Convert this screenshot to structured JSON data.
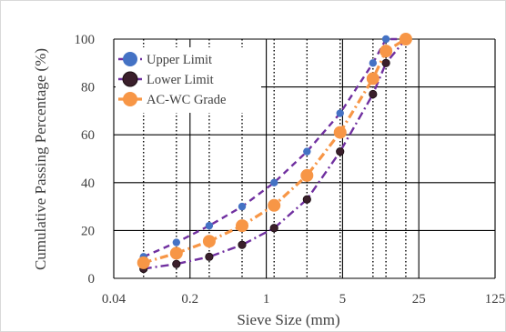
{
  "chart_data": {
    "type": "line",
    "xlabel": "Sieve Size (mm)",
    "ylabel": "Cumulative Passing Percentage (%)",
    "x_scale": "log",
    "xlim": [
      0.04,
      125
    ],
    "ylim": [
      0,
      100
    ],
    "x_ticks": [
      0.04,
      0.2,
      1,
      5,
      25,
      125
    ],
    "x_tick_labels": [
      "0.04",
      "0.2",
      "1",
      "5",
      "25",
      "125"
    ],
    "y_ticks": [
      0,
      20,
      40,
      60,
      80,
      100
    ],
    "y_tick_labels": [
      "0",
      "20",
      "40",
      "60",
      "80",
      "100"
    ],
    "sieve_sizes": [
      0.075,
      0.15,
      0.3,
      0.6,
      1.18,
      2.36,
      4.75,
      9.5,
      12.5,
      19
    ],
    "legend_position": "top-left",
    "grid": "dotted vertical lines at sieve sizes, solid lines at major ticks",
    "series": [
      {
        "name": "Upper Limit",
        "color": "#7030a0",
        "marker_color": "#4472c4",
        "line_style": "dashed",
        "x": [
          0.075,
          0.15,
          0.3,
          0.6,
          1.18,
          2.36,
          4.75,
          9.5,
          12.5,
          19
        ],
        "values": [
          9,
          15,
          22,
          30,
          40,
          53,
          69,
          90,
          100,
          100
        ]
      },
      {
        "name": "Lower Limit",
        "color": "#7030a0",
        "marker_color": "#3a1f2b",
        "line_style": "dash-dot",
        "x": [
          0.075,
          0.15,
          0.3,
          0.6,
          1.18,
          2.36,
          4.75,
          9.5,
          12.5,
          19
        ],
        "values": [
          4,
          6,
          9,
          14,
          21,
          33,
          53,
          77,
          90,
          100
        ]
      },
      {
        "name": "AC-WC Grade",
        "color": "#f79646",
        "marker_color": "#f79646",
        "line_style": "dash-dot",
        "x": [
          0.075,
          0.15,
          0.3,
          0.6,
          1.18,
          2.36,
          4.75,
          9.5,
          12.5,
          19
        ],
        "values": [
          6.5,
          10.5,
          15.5,
          22,
          30.5,
          43,
          61,
          83.5,
          95,
          100
        ]
      }
    ]
  }
}
